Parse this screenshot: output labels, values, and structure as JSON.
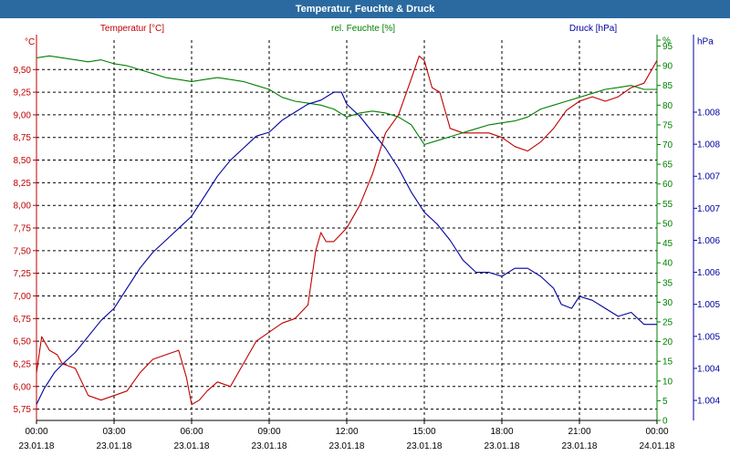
{
  "window": {
    "title": "Temperatur, Feuchte & Druck"
  },
  "colors": {
    "temperature": "#c00000",
    "humidity": "#008000",
    "pressure": "#0000a0",
    "grid": "#000000"
  },
  "chart_data": {
    "type": "line",
    "title": "Temperatur, Feuchte & Druck",
    "x_ticks": [
      {
        "hour": 0,
        "time": "00:00",
        "date": "23.01.18"
      },
      {
        "hour": 3,
        "time": "03:00",
        "date": "23.01.18"
      },
      {
        "hour": 6,
        "time": "06:00",
        "date": "23.01.18"
      },
      {
        "hour": 9,
        "time": "09:00",
        "date": "23.01.18"
      },
      {
        "hour": 12,
        "time": "12:00",
        "date": "23.01.18"
      },
      {
        "hour": 15,
        "time": "15:00",
        "date": "23.01.18"
      },
      {
        "hour": 18,
        "time": "18:00",
        "date": "23.01.18"
      },
      {
        "hour": 21,
        "time": "21:00",
        "date": "23.01.18"
      },
      {
        "hour": 24,
        "time": "00:00",
        "date": "24.01.18"
      }
    ],
    "x_range": [
      0,
      24
    ],
    "axes": {
      "temperature": {
        "unit": "°C",
        "label": "Temperatur [°C]",
        "range": [
          5.625,
          9.825
        ],
        "ticks": [
          "5,75",
          "6,00",
          "6,25",
          "6,50",
          "6,75",
          "7,00",
          "7,25",
          "7,50",
          "7,75",
          "8,00",
          "8,25",
          "8,50",
          "8,75",
          "9,00",
          "9,25",
          "9,50"
        ],
        "tick_values": [
          5.75,
          6.0,
          6.25,
          6.5,
          6.75,
          7.0,
          7.25,
          7.5,
          7.75,
          8.0,
          8.25,
          8.5,
          8.75,
          9.0,
          9.25,
          9.5
        ]
      },
      "humidity": {
        "unit": "%",
        "label": "rel. Feuchte [%]",
        "range": [
          0,
          96.5
        ],
        "ticks": [
          "0",
          "5",
          "10",
          "15",
          "20",
          "25",
          "30",
          "35",
          "40",
          "45",
          "50",
          "55",
          "60",
          "65",
          "70",
          "75",
          "80",
          "85",
          "90",
          "95",
          "%"
        ],
        "tick_values": [
          0,
          5,
          10,
          15,
          20,
          25,
          30,
          35,
          40,
          45,
          50,
          55,
          60,
          65,
          70,
          75,
          80,
          85,
          90,
          95,
          96.5
        ]
      },
      "pressure": {
        "unit": "hPa",
        "label": "Druck [hPa]",
        "range": [
          1003.55,
          1008.3
        ],
        "ticks": [
          "1.004",
          "1.004",
          "1.005",
          "1.005",
          "1.006",
          "1.006",
          "1.007",
          "1.007",
          "1.008",
          "1.008",
          "hPa"
        ],
        "tick_values": [
          1003.8,
          1004.2,
          1004.6,
          1005.0,
          1005.4,
          1005.8,
          1006.2,
          1006.6,
          1007.0,
          1007.4,
          1008.0
        ]
      }
    },
    "grid": true,
    "series": [
      {
        "name": "Temperatur [°C]",
        "axis": "temperature",
        "x": [
          0,
          0.2,
          0.5,
          0.8,
          1.0,
          1.5,
          2.0,
          2.5,
          3.0,
          3.5,
          4.0,
          4.5,
          5.0,
          5.5,
          5.8,
          6.0,
          6.3,
          6.6,
          7.0,
          7.5,
          8.0,
          8.5,
          9.0,
          9.5,
          10.0,
          10.5,
          10.8,
          11.0,
          11.2,
          11.5,
          12.0,
          12.5,
          13.0,
          13.5,
          14.0,
          14.5,
          14.8,
          15.0,
          15.3,
          15.6,
          16.0,
          16.5,
          17.0,
          17.5,
          18.0,
          18.5,
          19.0,
          19.5,
          20.0,
          20.5,
          21.0,
          21.5,
          22.0,
          22.5,
          23.0,
          23.5,
          24.0
        ],
        "values": [
          6.15,
          6.55,
          6.4,
          6.35,
          6.25,
          6.2,
          5.9,
          5.85,
          5.9,
          5.95,
          6.15,
          6.3,
          6.35,
          6.4,
          6.1,
          5.8,
          5.85,
          5.95,
          6.05,
          6.0,
          6.25,
          6.5,
          6.6,
          6.7,
          6.75,
          6.9,
          7.5,
          7.7,
          7.6,
          7.6,
          7.75,
          8.0,
          8.35,
          8.8,
          9.0,
          9.4,
          9.65,
          9.6,
          9.3,
          9.25,
          8.85,
          8.8,
          8.8,
          8.8,
          8.75,
          8.65,
          8.6,
          8.7,
          8.85,
          9.05,
          9.15,
          9.2,
          9.15,
          9.2,
          9.3,
          9.35,
          9.6
        ]
      },
      {
        "name": "rel. Feuchte [%]",
        "axis": "humidity",
        "x": [
          0,
          0.5,
          1.0,
          1.5,
          2.0,
          2.5,
          3.0,
          3.5,
          4.0,
          4.5,
          5.0,
          5.5,
          6.0,
          6.5,
          7.0,
          7.5,
          8.0,
          8.5,
          9.0,
          9.5,
          10.0,
          10.5,
          11.0,
          11.5,
          12.0,
          12.5,
          13.0,
          13.5,
          14.0,
          14.5,
          15.0,
          15.5,
          16.0,
          16.5,
          17.0,
          17.5,
          18.0,
          18.5,
          19.0,
          19.5,
          20.0,
          20.5,
          21.0,
          21.5,
          22.0,
          22.5,
          23.0,
          23.5,
          24.0
        ],
        "values": [
          92,
          92.5,
          92,
          91.5,
          91,
          91.5,
          90.5,
          90,
          89,
          88,
          87,
          86.5,
          86,
          86.5,
          87,
          86.5,
          86,
          85,
          84,
          82,
          81,
          80.5,
          80,
          79,
          77,
          78,
          78.5,
          78,
          77,
          75,
          70,
          71,
          72,
          73,
          74,
          75,
          75.5,
          76,
          77,
          79,
          80,
          81,
          82,
          83,
          84,
          84.5,
          85,
          84,
          84
        ]
      },
      {
        "name": "Druck [hPa]",
        "axis": "pressure",
        "x": [
          0,
          0.3,
          0.7,
          1.0,
          1.5,
          2.0,
          2.5,
          3.0,
          3.5,
          4.0,
          4.5,
          5.0,
          5.5,
          6.0,
          6.5,
          7.0,
          7.5,
          8.0,
          8.5,
          9.0,
          9.5,
          10.0,
          10.5,
          11.0,
          11.5,
          11.8,
          12.0,
          12.5,
          13.0,
          13.5,
          14.0,
          14.5,
          15.0,
          15.5,
          16.0,
          16.5,
          17.0,
          17.5,
          18.0,
          18.5,
          19.0,
          19.5,
          20.0,
          20.3,
          20.7,
          21.0,
          21.5,
          22.0,
          22.5,
          23.0,
          23.5,
          24.0
        ],
        "values": [
          1003.75,
          1003.95,
          1004.15,
          1004.25,
          1004.4,
          1004.6,
          1004.8,
          1004.95,
          1005.2,
          1005.45,
          1005.65,
          1005.8,
          1005.95,
          1006.1,
          1006.35,
          1006.6,
          1006.8,
          1006.95,
          1007.1,
          1007.15,
          1007.3,
          1007.4,
          1007.5,
          1007.55,
          1007.65,
          1007.65,
          1007.5,
          1007.35,
          1007.15,
          1006.95,
          1006.7,
          1006.4,
          1006.15,
          1006.0,
          1005.8,
          1005.55,
          1005.4,
          1005.4,
          1005.35,
          1005.45,
          1005.45,
          1005.35,
          1005.2,
          1005.0,
          1004.95,
          1005.1,
          1005.05,
          1004.95,
          1004.85,
          1004.9,
          1004.75,
          1004.75
        ]
      }
    ]
  }
}
